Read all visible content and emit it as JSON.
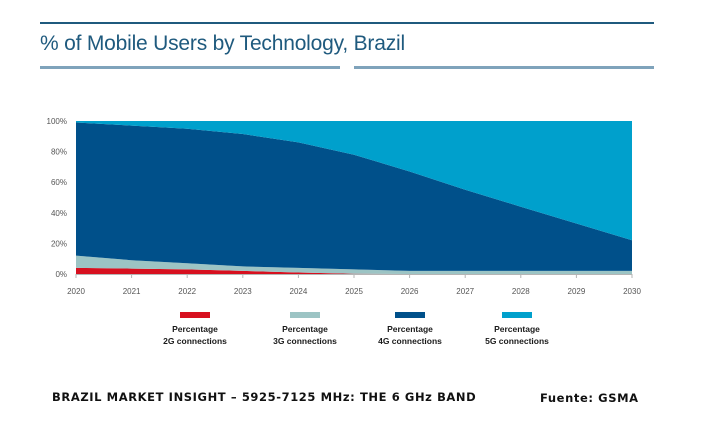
{
  "header": {
    "title": "% of Mobile Users by Technology, Brazil"
  },
  "footer": {
    "source_title": "BRAZIL MARKET INSIGHT – 5925-7125 MHz: THE 6 GHz BAND",
    "source_credit": "Fuente: GSMA"
  },
  "colors": {
    "2G": "#d7101f",
    "3G": "#9cc4c4",
    "4G": "#00508a",
    "5G": "#00a0cc",
    "title": "#1f5a7e"
  },
  "legend": [
    {
      "line1": "Percentage",
      "line2": "2G connections",
      "key": "2G"
    },
    {
      "line1": "Percentage",
      "line2": "3G connections",
      "key": "3G"
    },
    {
      "line1": "Percentage",
      "line2": "4G connections",
      "key": "4G"
    },
    {
      "line1": "Percentage",
      "line2": "5G connections",
      "key": "5G"
    }
  ],
  "chart_data": {
    "type": "area",
    "stacked": true,
    "title": "% of Mobile Users by Technology, Brazil",
    "xlabel": "",
    "ylabel": "",
    "x": [
      2020,
      2021,
      2022,
      2023,
      2024,
      2025,
      2026,
      2027,
      2028,
      2029,
      2030
    ],
    "x_tick_labels": [
      "2020",
      "2021",
      "2022",
      "2023",
      "2024",
      "2025",
      "2026",
      "2027",
      "2028",
      "2029",
      "2030"
    ],
    "y_tick_labels": [
      "0%",
      "20%",
      "40%",
      "60%",
      "80%",
      "100%"
    ],
    "y_ticks": [
      0,
      20,
      40,
      60,
      80,
      100
    ],
    "ylim": [
      0,
      100
    ],
    "grid": false,
    "legend_position": "bottom",
    "series": [
      {
        "name": "Percentage 2G connections",
        "key": "2G",
        "values": [
          4,
          3.5,
          3,
          2,
          1,
          0.2,
          0,
          0,
          0,
          0,
          0
        ]
      },
      {
        "name": "Percentage 3G connections",
        "key": "3G",
        "values": [
          8,
          5.5,
          4,
          3,
          3,
          2.8,
          2,
          2,
          2,
          2,
          2
        ]
      },
      {
        "name": "Percentage 4G connections",
        "key": "4G",
        "values": [
          87,
          88,
          88,
          86.5,
          82,
          75,
          65,
          53,
          42,
          31,
          20
        ]
      },
      {
        "name": "Percentage 5G connections",
        "key": "5G",
        "values": [
          1,
          3,
          5,
          8.5,
          14,
          22,
          33,
          45,
          56,
          67,
          78
        ]
      }
    ]
  }
}
